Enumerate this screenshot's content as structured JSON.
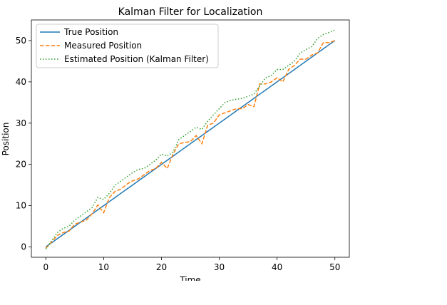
{
  "chart_data": {
    "type": "line",
    "title": "Kalman Filter for Localization",
    "xlabel": "Time",
    "ylabel": "Position",
    "xlim": [
      -2.5,
      52.5
    ],
    "ylim": [
      -2.5,
      55
    ],
    "xticks": [
      0,
      10,
      20,
      30,
      40,
      50
    ],
    "yticks": [
      0,
      10,
      20,
      30,
      40,
      50
    ],
    "grid": false,
    "legend_position": "upper-left",
    "x": [
      0,
      1,
      2,
      3,
      4,
      5,
      6,
      7,
      8,
      9,
      10,
      11,
      12,
      13,
      14,
      15,
      16,
      17,
      18,
      19,
      20,
      21,
      22,
      23,
      24,
      25,
      26,
      27,
      28,
      29,
      30,
      31,
      32,
      33,
      34,
      35,
      36,
      37,
      38,
      39,
      40,
      41,
      42,
      43,
      44,
      45,
      46,
      47,
      48,
      49,
      50
    ],
    "series": [
      {
        "name": "True Position",
        "style": "solid",
        "color": "#1f77b4",
        "values": [
          0,
          1,
          2,
          3,
          4,
          5,
          6,
          7,
          8,
          9,
          10,
          11,
          12,
          13,
          14,
          15,
          16,
          17,
          18,
          19,
          20,
          21,
          22,
          23,
          24,
          25,
          26,
          27,
          28,
          29,
          30,
          31,
          32,
          33,
          34,
          35,
          36,
          37,
          38,
          39,
          40,
          41,
          42,
          43,
          44,
          45,
          46,
          47,
          48,
          49,
          50
        ]
      },
      {
        "name": "Measured Position",
        "style": "dashed",
        "color": "#ff7f0e",
        "values": [
          -0.3,
          1.2,
          2.8,
          3.5,
          3.8,
          5.5,
          6.0,
          6.5,
          8.0,
          10.2,
          8.3,
          12.0,
          13.5,
          14.0,
          15.2,
          16.0,
          16.5,
          17.5,
          18.5,
          19.0,
          20.5,
          19.0,
          22.5,
          25.0,
          25.3,
          25.5,
          27.0,
          25.0,
          29.5,
          30.0,
          32.0,
          32.5,
          33.0,
          33.5,
          33.5,
          34.5,
          34.0,
          39.5,
          39.5,
          40.0,
          41.0,
          40.0,
          43.0,
          44.0,
          45.5,
          45.5,
          46.5,
          47.0,
          49.5,
          49.5,
          50.0
        ]
      },
      {
        "name": "Estimated Position (Kalman Filter)",
        "style": "dotted",
        "color": "#2ca02c",
        "values": [
          -0.5,
          1.5,
          3.5,
          4.5,
          5.0,
          6.5,
          7.5,
          8.5,
          9.5,
          12.0,
          11.5,
          13.0,
          15.0,
          16.0,
          17.0,
          18.0,
          18.8,
          19.0,
          20.0,
          21.0,
          22.5,
          22.0,
          23.0,
          26.0,
          27.0,
          28.0,
          29.0,
          28.5,
          30.5,
          32.0,
          33.5,
          35.0,
          35.5,
          35.8,
          36.0,
          36.5,
          37.0,
          39.0,
          41.0,
          41.5,
          43.0,
          43.0,
          44.0,
          45.0,
          47.0,
          47.8,
          48.5,
          50.5,
          51.5,
          52.0,
          52.5
        ]
      }
    ]
  }
}
